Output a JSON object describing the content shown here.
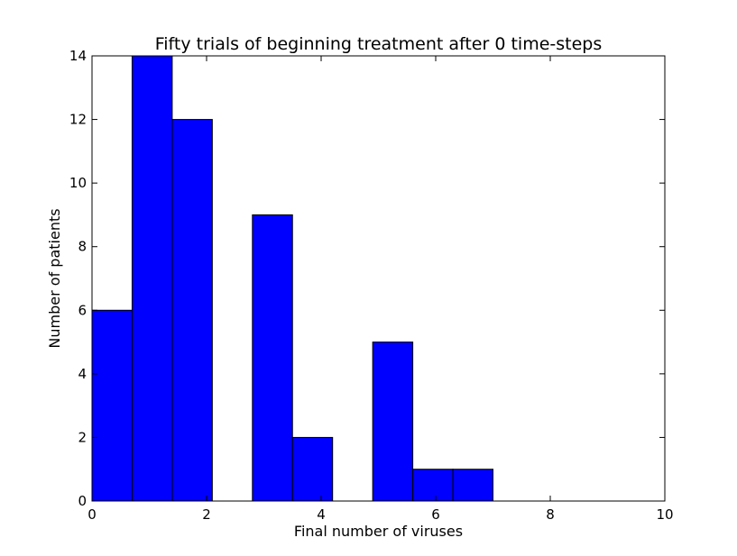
{
  "chart_data": {
    "type": "bar",
    "title": "Fifty trials of beginning treatment after 0 time-steps",
    "xlabel": "Final number of viruses",
    "ylabel": "Number of patients",
    "xlim": [
      0,
      10
    ],
    "ylim": [
      0,
      14
    ],
    "xticks": [
      "0",
      "2",
      "4",
      "6",
      "8",
      "10"
    ],
    "yticks": [
      "0",
      "2",
      "4",
      "6",
      "8",
      "10",
      "12",
      "14"
    ],
    "bins": [
      {
        "start": 0.0,
        "end": 0.7,
        "value": 6
      },
      {
        "start": 0.7,
        "end": 1.4,
        "value": 14
      },
      {
        "start": 1.4,
        "end": 2.1,
        "value": 12
      },
      {
        "start": 2.1,
        "end": 2.8,
        "value": 0
      },
      {
        "start": 2.8,
        "end": 3.5,
        "value": 9
      },
      {
        "start": 3.5,
        "end": 4.2,
        "value": 2
      },
      {
        "start": 4.2,
        "end": 4.9,
        "value": 0
      },
      {
        "start": 4.9,
        "end": 5.6,
        "value": 5
      },
      {
        "start": 5.6,
        "end": 6.3,
        "value": 1
      },
      {
        "start": 6.3,
        "end": 7.0,
        "value": 1
      }
    ],
    "bar_color": "#0000ff",
    "grid": false
  }
}
